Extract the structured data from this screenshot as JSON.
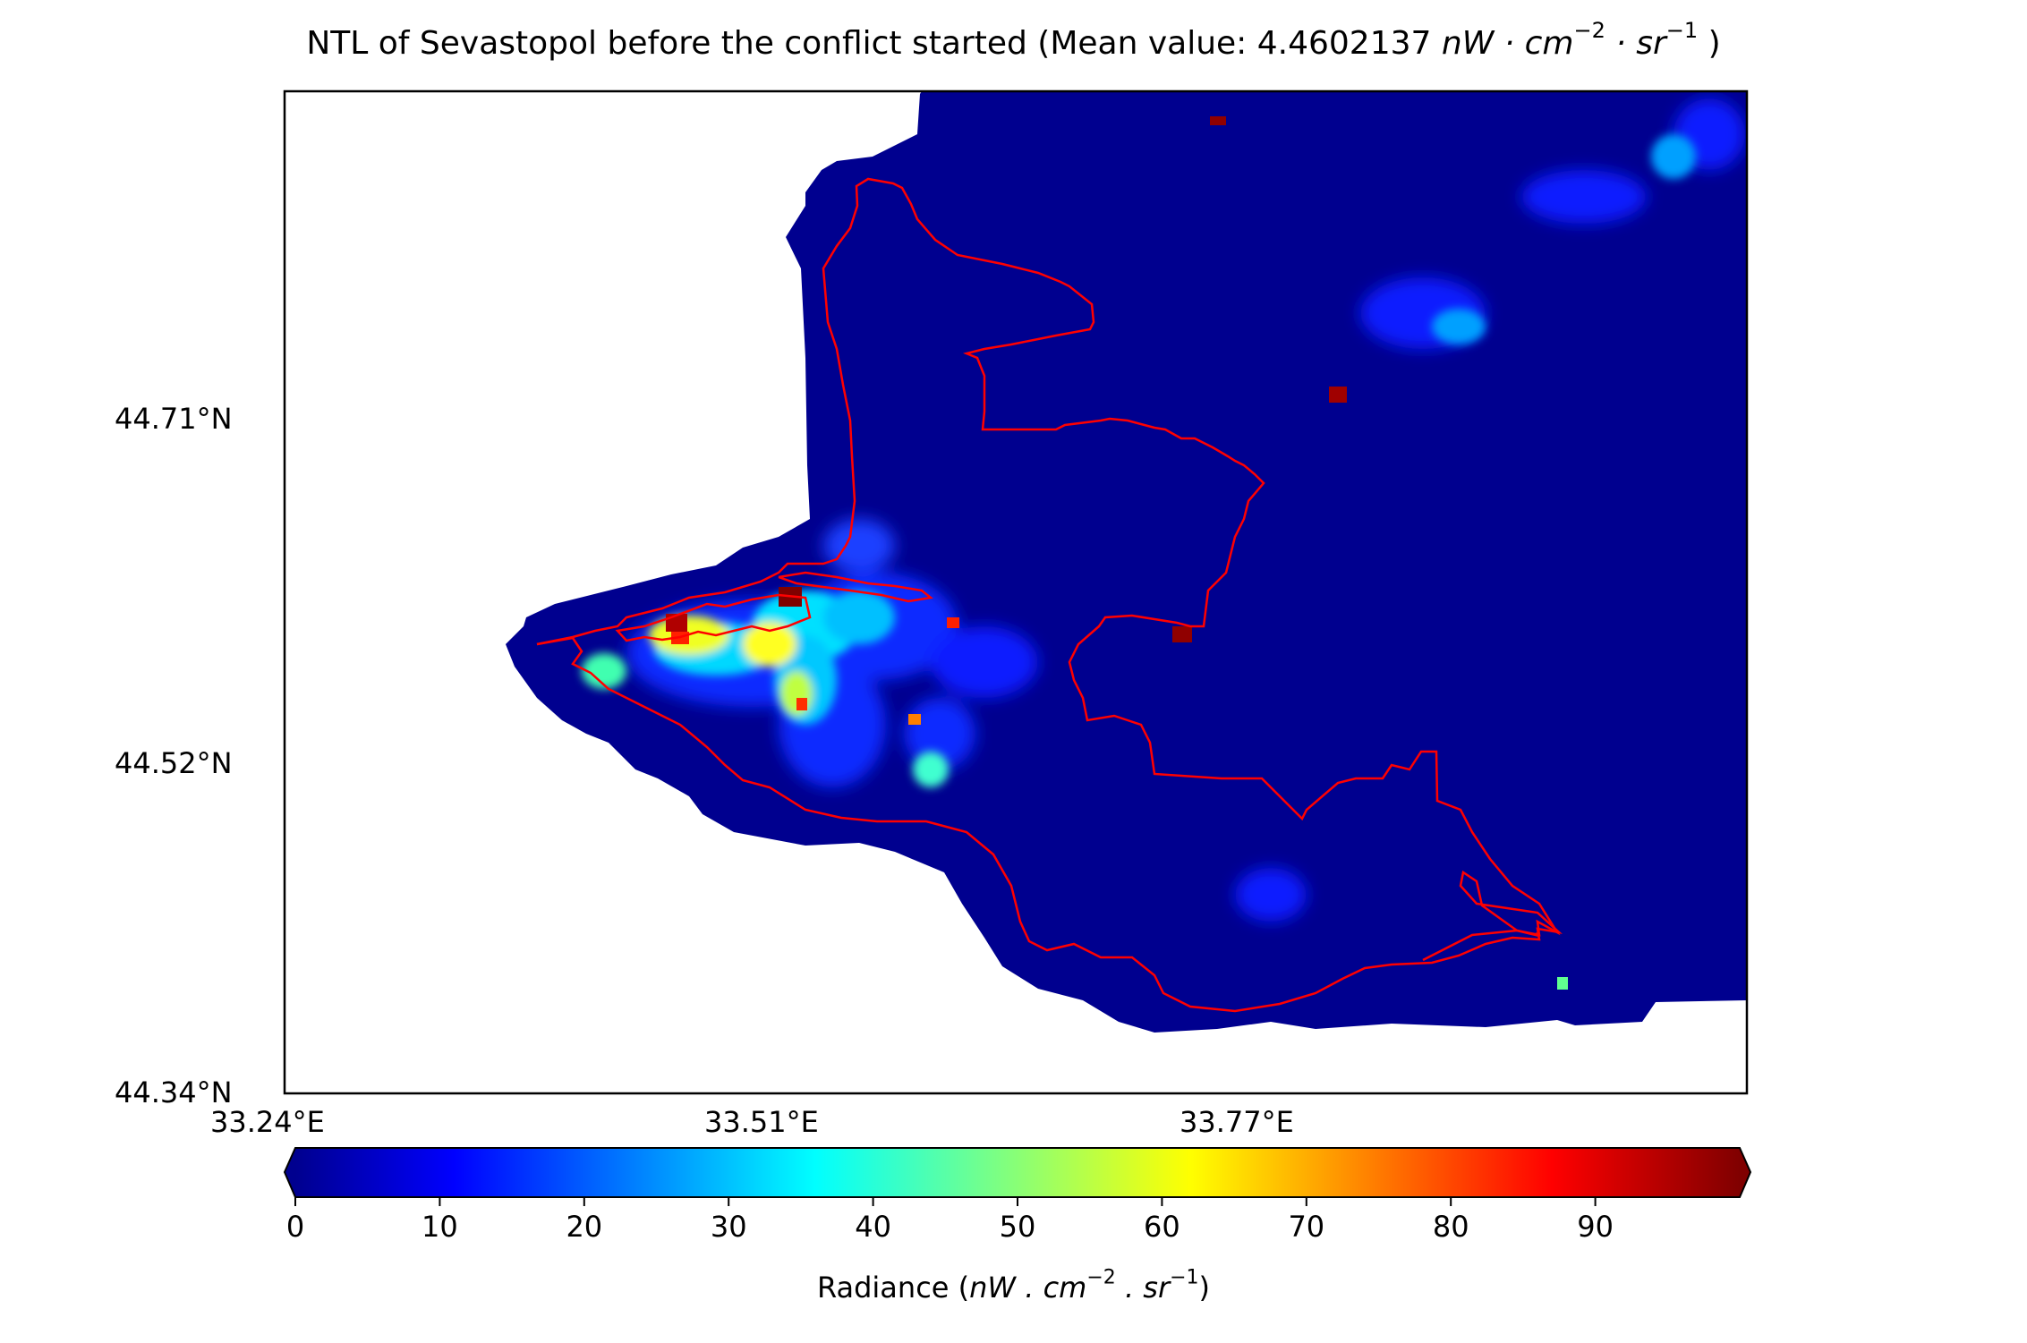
{
  "title": {
    "prefix": "NTL of Sevastopol before the conflict started (Mean value: 4.4602137 ",
    "unit_base": "nW · cm",
    "exp1": "−2",
    "unit_mid": " · sr",
    "exp2": "−1",
    "suffix": " )"
  },
  "map": {
    "lat_ticks": [
      "44.71°N",
      "44.52°N",
      "44.34°N"
    ],
    "lon_ticks": [
      "33.24°E",
      "33.51°E",
      "33.77°E"
    ],
    "background_color": "#00008f",
    "nodata_color": "#ffffff",
    "boundary_color": "#ff0000"
  },
  "colorbar": {
    "colormap": "jet",
    "min": 0,
    "max": 100,
    "extend": "both",
    "ticks": [
      "0",
      "10",
      "20",
      "30",
      "40",
      "50",
      "60",
      "70",
      "80",
      "90"
    ],
    "label": {
      "prefix": "Radiance (",
      "unit_base": "nW . cm",
      "exp1": "−2",
      "unit_mid": " . sr",
      "exp2": "−1",
      "suffix": ")"
    }
  }
}
